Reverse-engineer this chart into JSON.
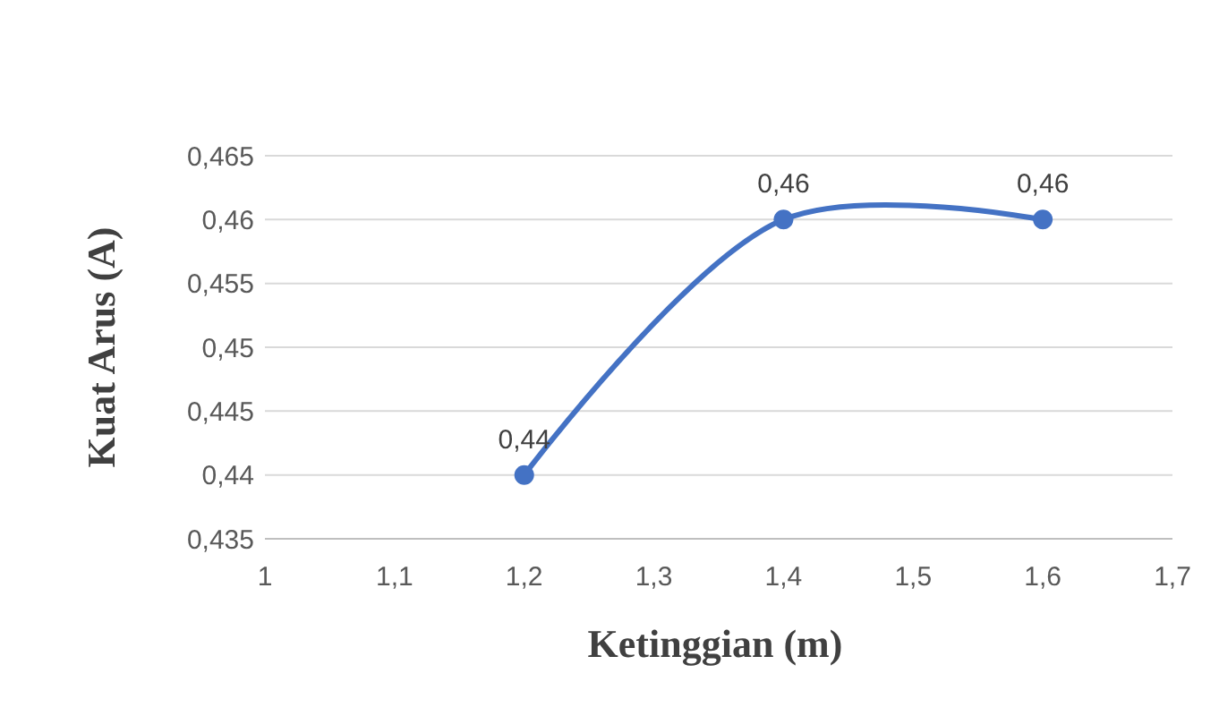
{
  "chart_data": {
    "type": "line",
    "xlabel": "Ketinggian (m)",
    "ylabel": "Kuat Arus (A)",
    "x": [
      1.2,
      1.4,
      1.6
    ],
    "series": [
      {
        "color": "#4472c4",
        "values": [
          0.44,
          0.46,
          0.46
        ],
        "value_labels": [
          "0,44",
          "0,46",
          "0,46"
        ]
      }
    ],
    "xlim": [
      1,
      1.7
    ],
    "xticks": [
      {
        "value": 1,
        "label": "1"
      },
      {
        "value": 1.1,
        "label": "1,1"
      },
      {
        "value": 1.2,
        "label": "1,2"
      },
      {
        "value": 1.3,
        "label": "1,3"
      },
      {
        "value": 1.4,
        "label": "1,4"
      },
      {
        "value": 1.5,
        "label": "1,5"
      },
      {
        "value": 1.6,
        "label": "1,6"
      },
      {
        "value": 1.7,
        "label": "1,7"
      }
    ],
    "ylim": [
      0.435,
      0.465
    ],
    "yticks": [
      {
        "value": 0.435,
        "label": "0,435"
      },
      {
        "value": 0.44,
        "label": "0,44"
      },
      {
        "value": 0.445,
        "label": "0,445"
      },
      {
        "value": 0.45,
        "label": "0,45"
      },
      {
        "value": 0.455,
        "label": "0,455"
      },
      {
        "value": 0.46,
        "label": "0,46"
      },
      {
        "value": 0.465,
        "label": "0,465"
      }
    ],
    "grid": "y",
    "marker": "circle",
    "line_style": "solid"
  }
}
